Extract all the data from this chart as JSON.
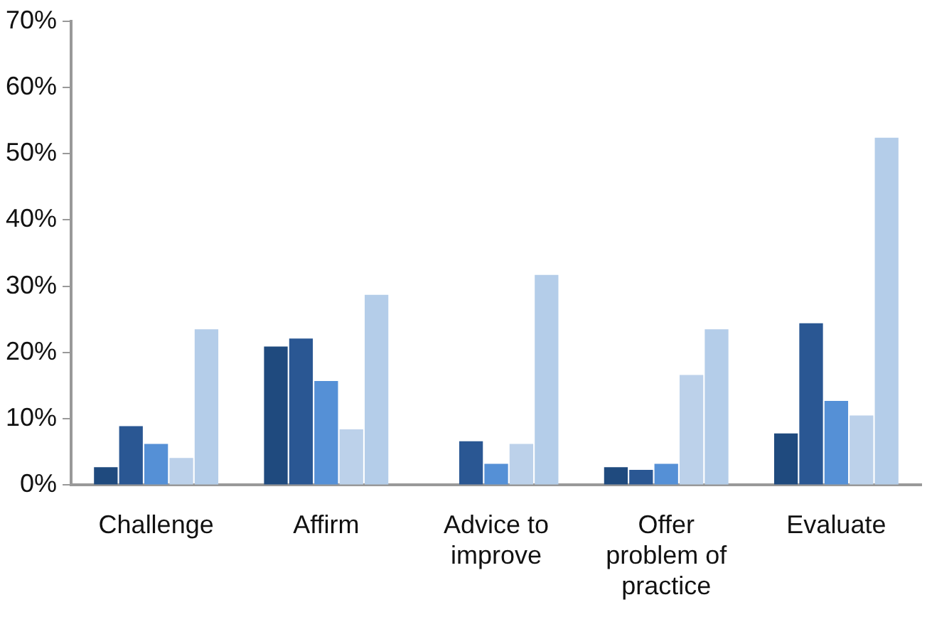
{
  "chart_data": {
    "type": "bar",
    "categories": [
      "Challenge",
      "Affirm",
      "Advice to improve",
      "Offer problem of practice",
      "Evaluate"
    ],
    "series": [
      {
        "color": "#1f4a7e",
        "values": [
          2.7,
          20.9,
          null,
          2.7,
          7.8
        ]
      },
      {
        "color": "#2a5793",
        "values": [
          8.9,
          22.1,
          6.6,
          2.3,
          24.4
        ]
      },
      {
        "color": "#5590d6",
        "values": [
          6.2,
          15.7,
          3.2,
          3.2,
          12.7
        ]
      },
      {
        "color": "#bcd1ea",
        "values": [
          4.1,
          8.4,
          6.2,
          16.6,
          10.5
        ]
      },
      {
        "color": "#b4cde9",
        "values": [
          23.5,
          28.7,
          31.7,
          23.5,
          52.4
        ]
      }
    ],
    "ylim": [
      0,
      70
    ],
    "yticks": [
      {
        "value": 0,
        "label": "0%"
      },
      {
        "value": 10,
        "label": "10%"
      },
      {
        "value": 20,
        "label": "20%"
      },
      {
        "value": 30,
        "label": "30%"
      },
      {
        "value": 40,
        "label": "40%"
      },
      {
        "value": 50,
        "label": "50%"
      },
      {
        "value": 60,
        "label": "60%"
      },
      {
        "value": 70,
        "label": "70%"
      }
    ],
    "grid": false,
    "legend": false
  }
}
